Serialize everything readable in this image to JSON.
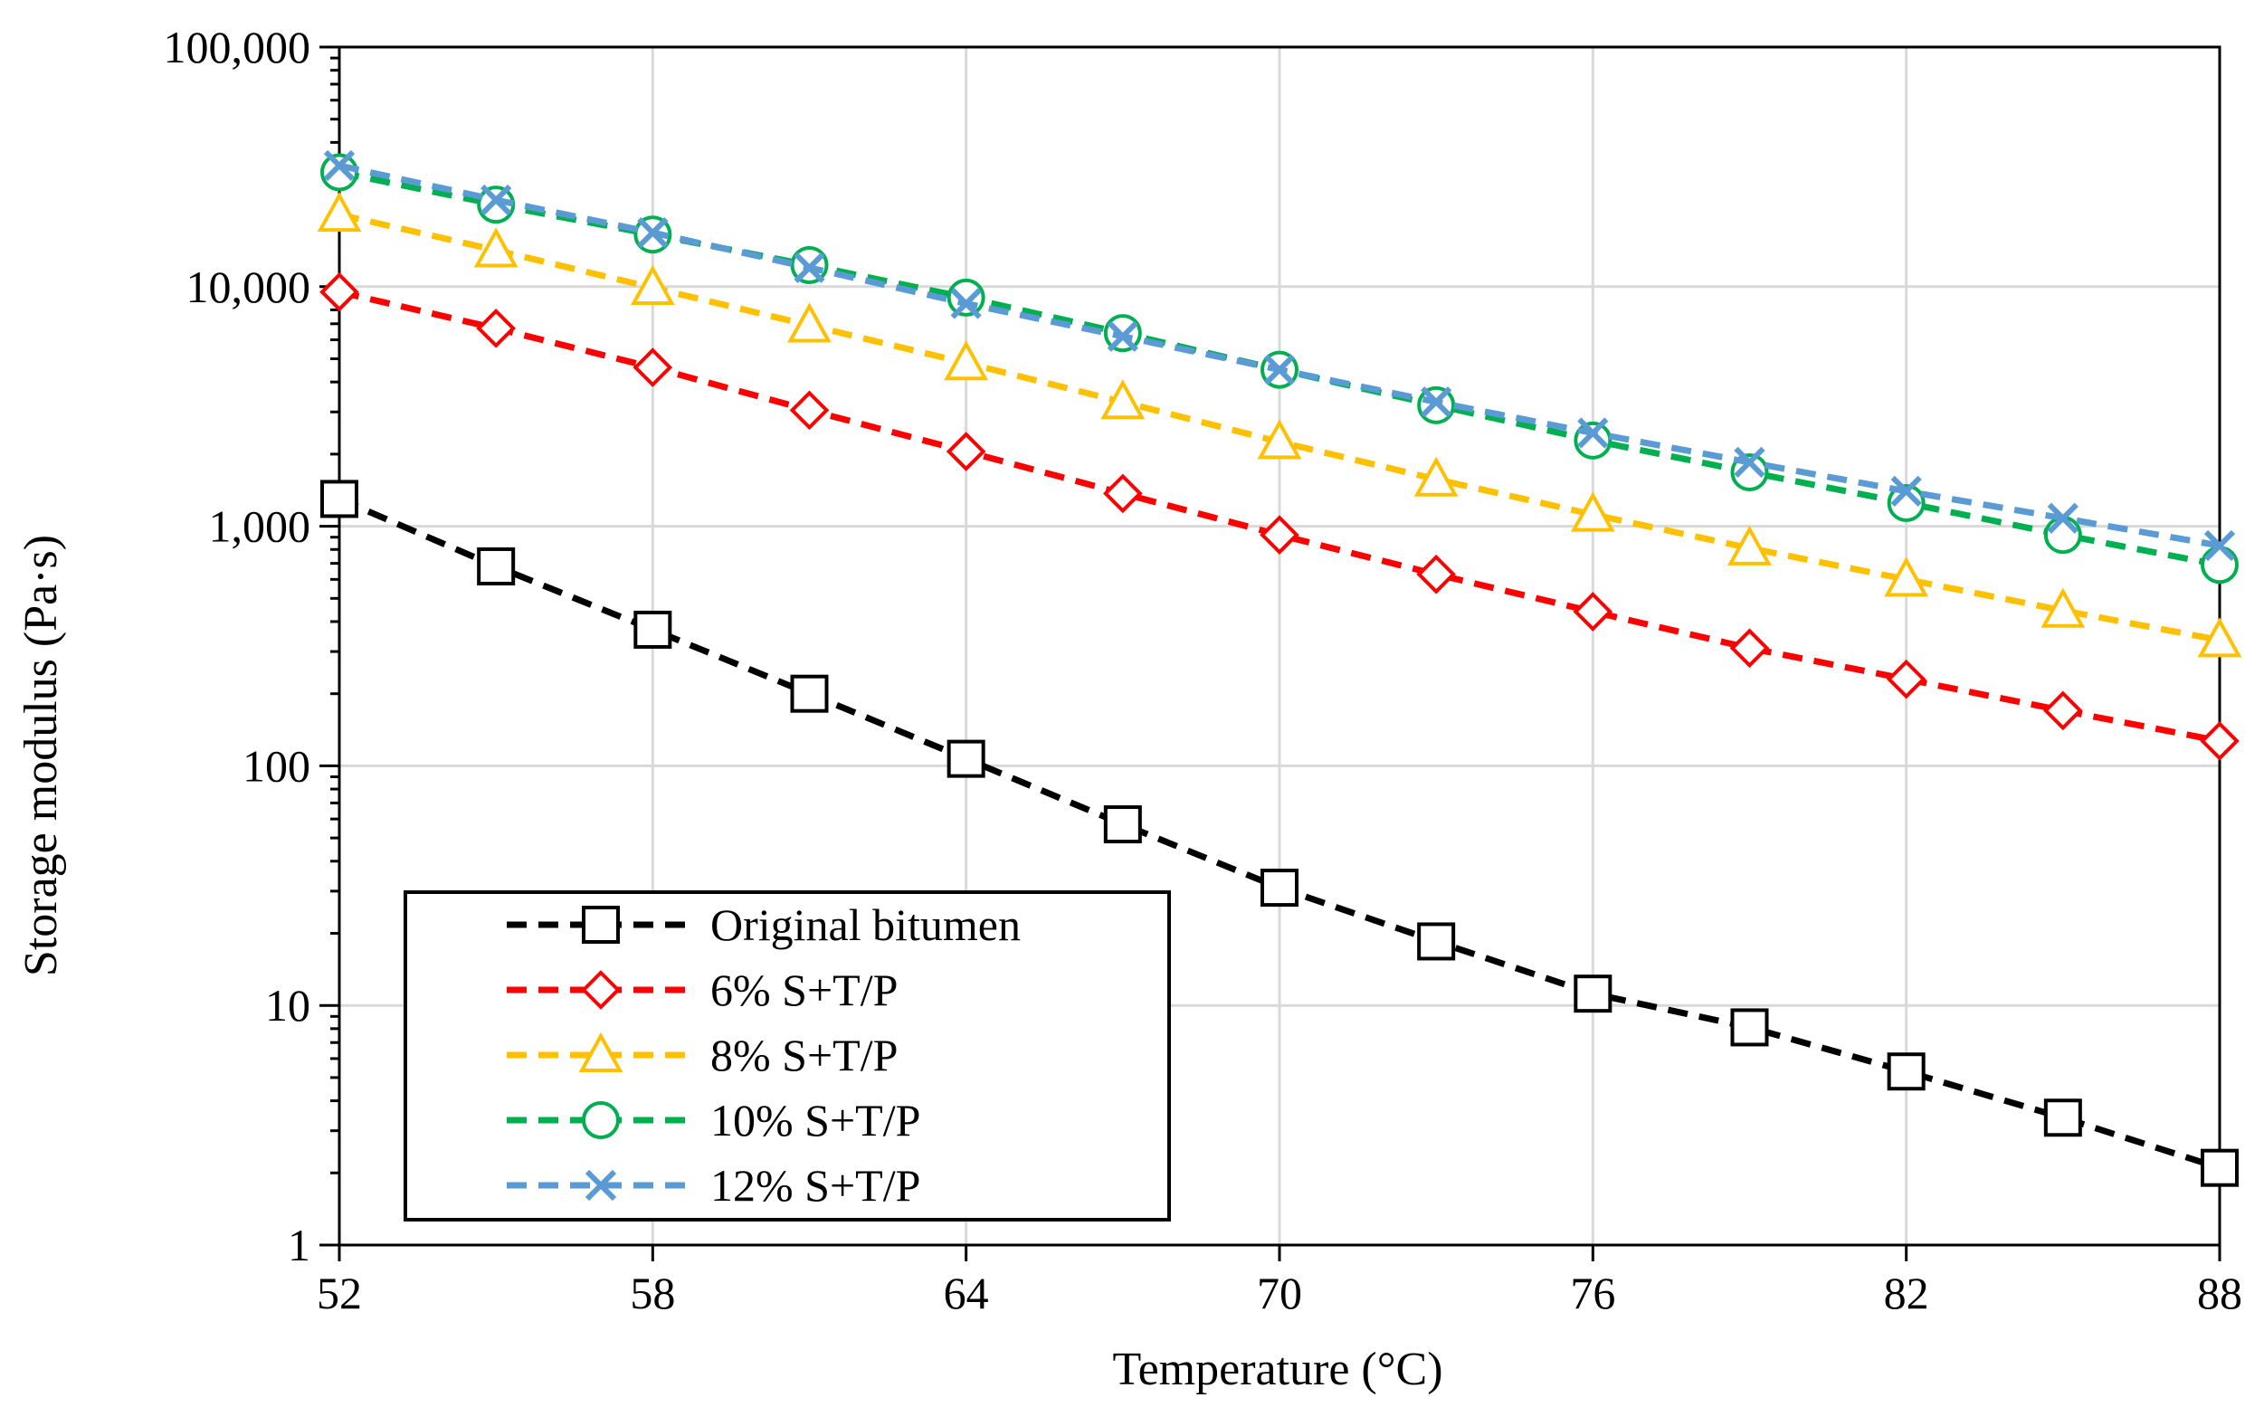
{
  "chart_data": {
    "type": "line",
    "title": "",
    "xlabel": "Temperature (°C)",
    "ylabel": "Storage modulus  (Pa·s)",
    "xlim": [
      52,
      88
    ],
    "ylim": [
      1,
      100000
    ],
    "yscale": "log",
    "grid": true,
    "x_ticks": [
      52,
      58,
      64,
      70,
      76,
      82,
      88
    ],
    "x_tick_labels": [
      "52",
      "58",
      "64",
      "70",
      "76",
      "82",
      "88"
    ],
    "y_ticks": [
      1,
      10,
      100,
      1000,
      10000,
      100000
    ],
    "y_tick_labels": [
      "1",
      "10",
      "100",
      "1,000",
      "10,000",
      "100,000"
    ],
    "legend_position": "bottom-left",
    "x": [
      52,
      55,
      58,
      61,
      64,
      67,
      70,
      73,
      76,
      79,
      82,
      85,
      88
    ],
    "series": [
      {
        "name": "Original bitumen",
        "color": "#000000",
        "marker": "square",
        "values": [
          1300,
          680,
          370,
          200,
          107,
          57,
          31,
          18.5,
          11.2,
          8.1,
          5.3,
          3.4,
          2.1
        ]
      },
      {
        "name": "6% S+T/P",
        "color": "#FF0000",
        "marker": "diamond",
        "values": [
          9500,
          6700,
          4600,
          3050,
          2050,
          1370,
          920,
          630,
          440,
          310,
          230,
          170,
          127
        ]
      },
      {
        "name": "8% S+T/P",
        "color": "#FFC000",
        "marker": "triangle",
        "values": [
          20000,
          14200,
          9900,
          6900,
          4800,
          3300,
          2250,
          1570,
          1120,
          810,
          600,
          445,
          335
        ]
      },
      {
        "name": "10% S+T/P",
        "color": "#00B050",
        "marker": "circle",
        "values": [
          30000,
          22000,
          16500,
          12300,
          9000,
          6400,
          4500,
          3200,
          2280,
          1680,
          1250,
          920,
          690
        ]
      },
      {
        "name": "12% S+T/P",
        "color": "#5B9BD5",
        "marker": "x",
        "values": [
          32000,
          23000,
          16800,
          12000,
          8500,
          6200,
          4500,
          3300,
          2450,
          1850,
          1400,
          1080,
          830
        ]
      }
    ]
  }
}
